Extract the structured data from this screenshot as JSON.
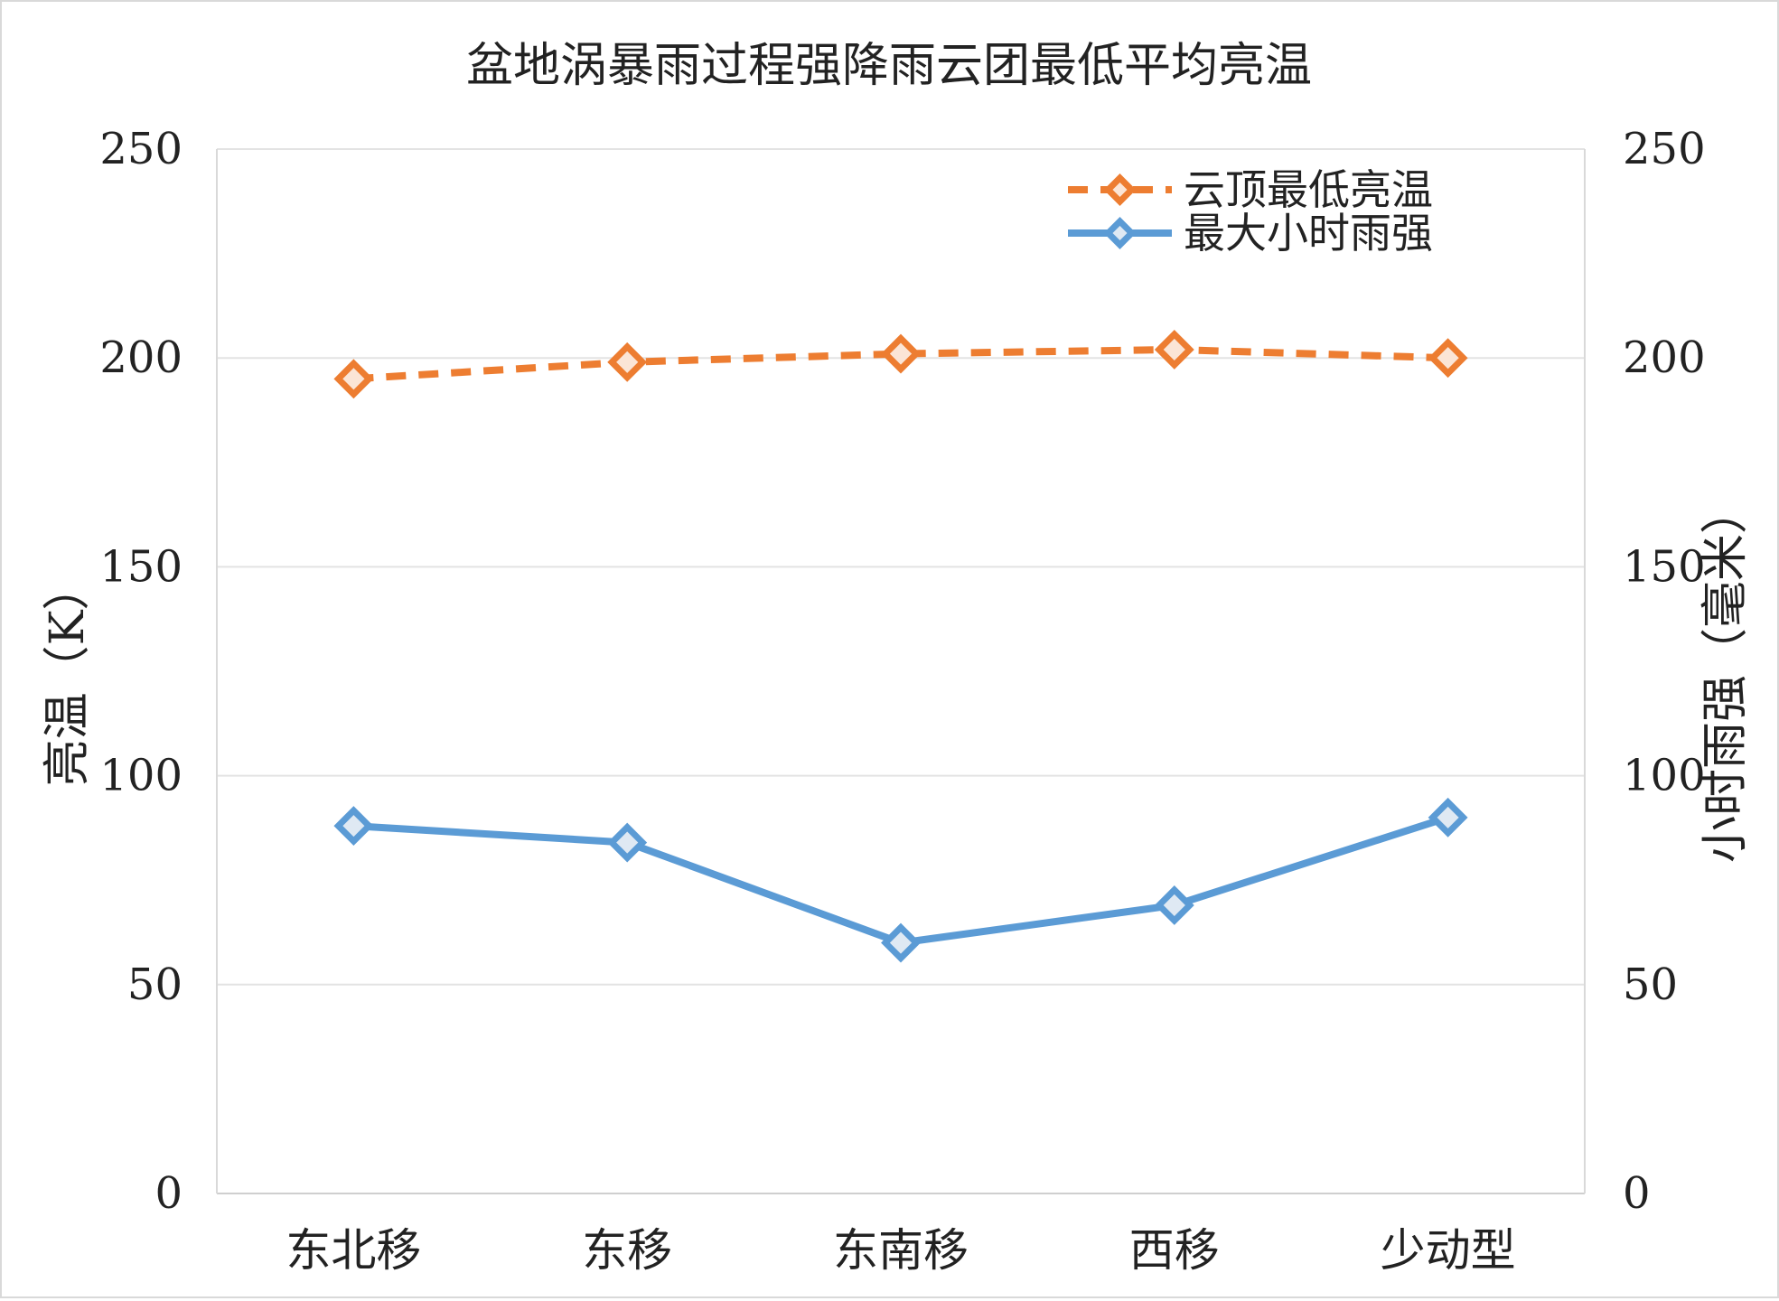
{
  "chart_data": {
    "type": "line",
    "title": "盆地涡暴雨过程强降雨云团最低平均亮温",
    "categories": [
      "东北移",
      "东移",
      "东南移",
      "西移",
      "少动型"
    ],
    "ylabel": "亮温（K）",
    "y2label": "小时雨强（毫米）",
    "ylim": [
      0,
      250
    ],
    "y2lim": [
      0,
      250
    ],
    "yticks": [
      "0",
      "50",
      "100",
      "150",
      "200",
      "250"
    ],
    "y2ticks": [
      "0",
      "50",
      "100",
      "150",
      "200",
      "250"
    ],
    "grid": true,
    "legend_position": "top-right",
    "series": [
      {
        "name": "云顶最低亮温",
        "axis": "left",
        "style": "dashed",
        "marker": "diamond",
        "color": "#ED7D31",
        "values": [
          195,
          199,
          201,
          202,
          200
        ]
      },
      {
        "name": "最大小时雨强",
        "axis": "right",
        "style": "solid",
        "marker": "diamond",
        "color": "#5B9BD5",
        "values": [
          88,
          84,
          60,
          69,
          90
        ]
      }
    ]
  }
}
